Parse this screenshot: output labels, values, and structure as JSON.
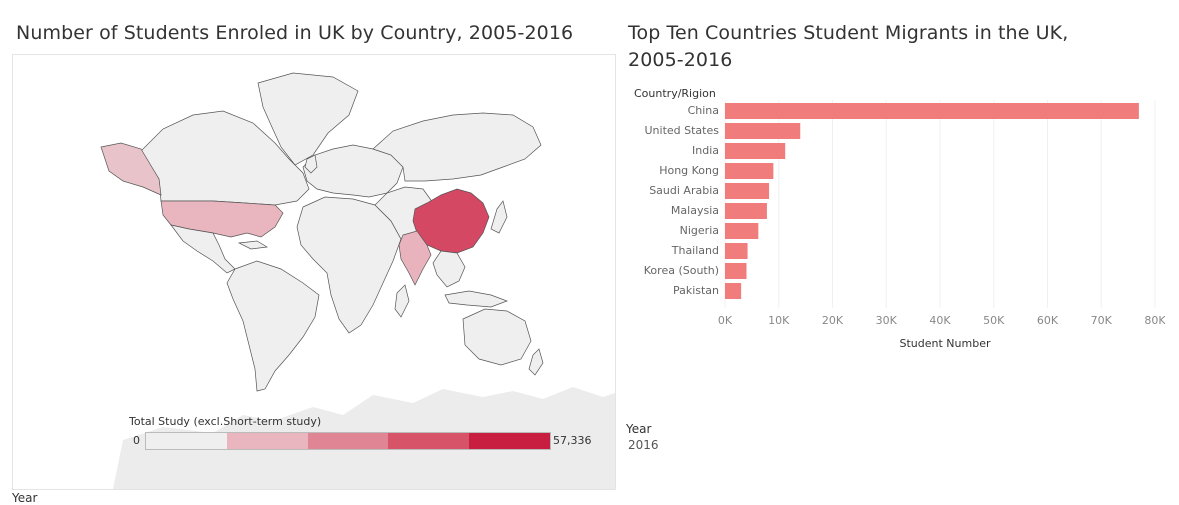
{
  "map": {
    "title": "Number  of Students Enroled in UK by Country, 2005-2016",
    "legend_title": "Total Study (excl.Short-term study)",
    "legend_min": "0",
    "legend_max": "57,336",
    "legend_colors": [
      "#efefef",
      "#e9b5bf",
      "#df8593",
      "#d65368",
      "#c81f40"
    ],
    "colors": {
      "land": "#efefef",
      "border": "#555555",
      "china": "#d54864",
      "usa": "#e9b5bf",
      "alaska": "#e9c3ca",
      "india": "#e8b3bc",
      "antarctica": "#ececec"
    }
  },
  "chart_data": {
    "type": "bar",
    "orientation": "horizontal",
    "title": "Top Ten Countries Student Migrants in the UK, 2005-2016",
    "category_header": "Country/Rigion",
    "xlabel": "Student Number",
    "categories": [
      "China",
      "United States",
      "India",
      "Hong Kong",
      "Saudi Arabia",
      "Malaysia",
      "Nigeria",
      "Thailand",
      "Korea (South)",
      "Pakistan"
    ],
    "values": [
      77000,
      14000,
      11200,
      9000,
      8200,
      7800,
      6200,
      4200,
      4000,
      3000
    ],
    "xlim": [
      0,
      80000
    ],
    "xticks": [
      0,
      10000,
      20000,
      30000,
      40000,
      50000,
      60000,
      70000,
      80000
    ],
    "xtick_labels": [
      "0K",
      "10K",
      "20K",
      "30K",
      "40K",
      "50K",
      "60K",
      "70K",
      "80K"
    ],
    "bar_color": "#f07c7c",
    "grid": "vertical"
  },
  "filter": {
    "label": "Year",
    "value": "2016",
    "bottom_label": "Year"
  }
}
